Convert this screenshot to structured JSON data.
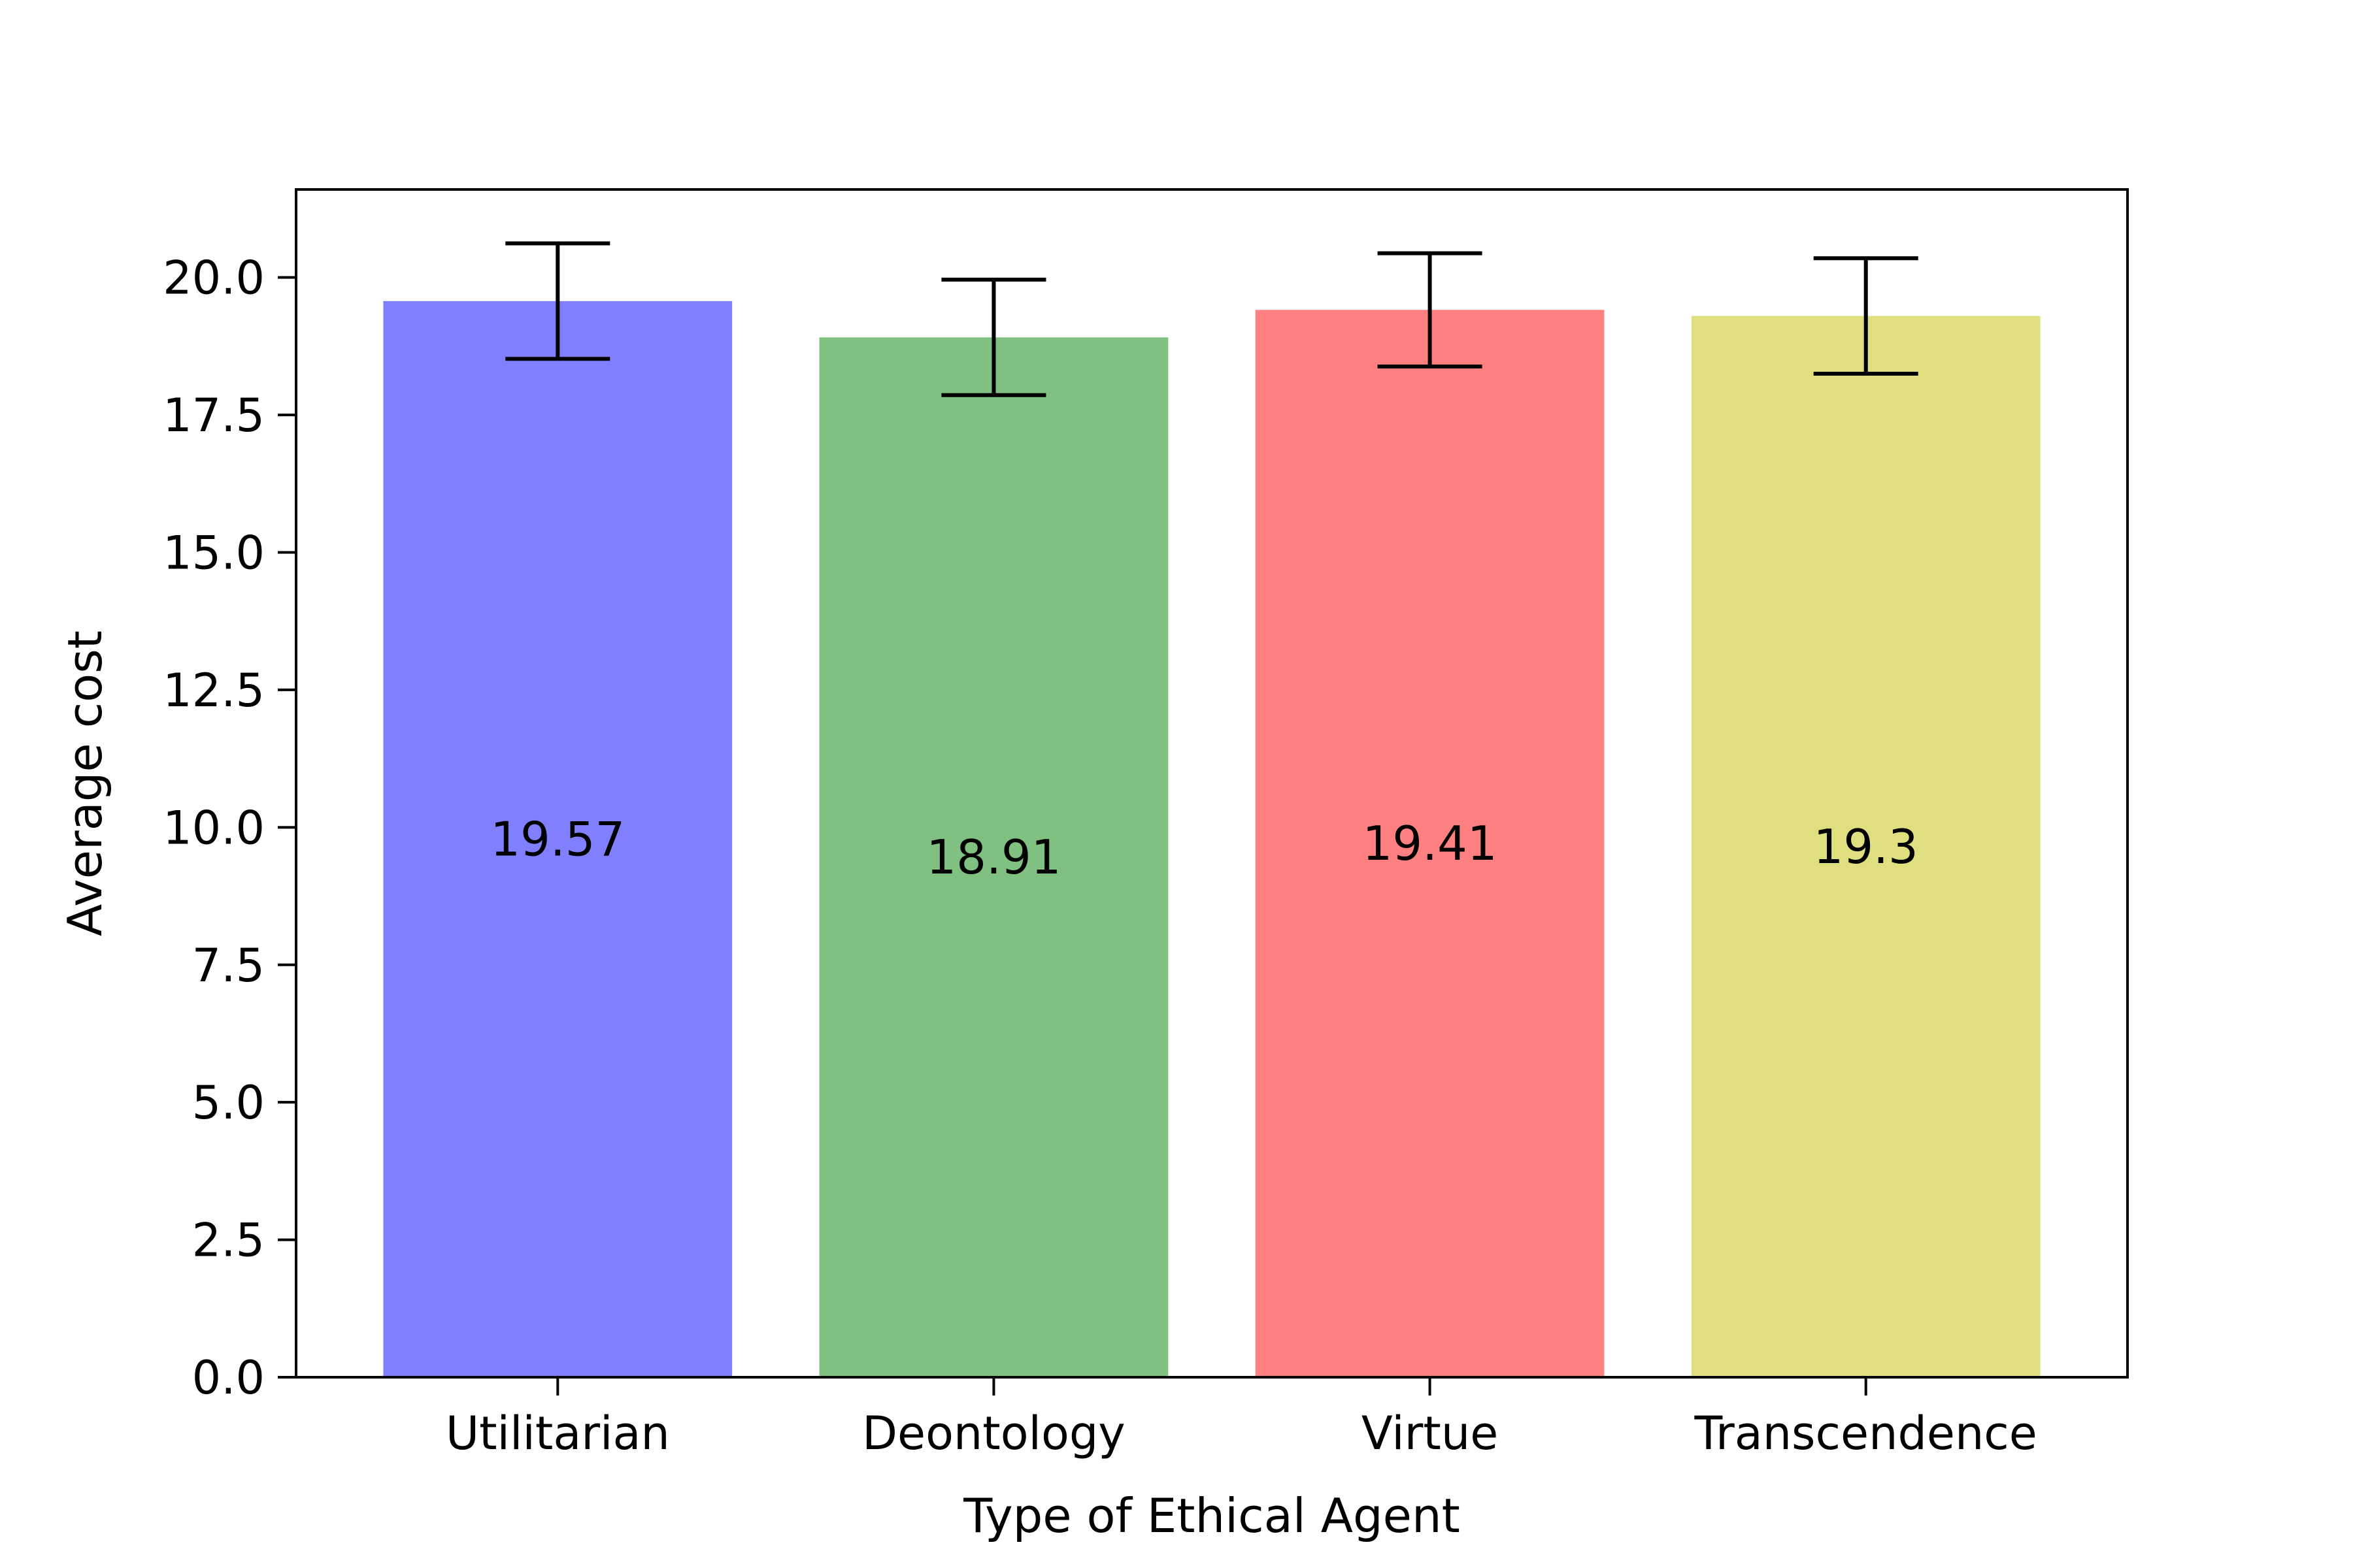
{
  "chart_data": {
    "type": "bar",
    "title": "",
    "xlabel": "Type of Ethical Agent",
    "ylabel": "Average cost",
    "categories": [
      "Utilitarian",
      "Deontology",
      "Virtue",
      "Transcendence"
    ],
    "values": [
      19.57,
      18.91,
      19.41,
      19.3
    ],
    "value_labels": [
      "19.57",
      "18.91",
      "19.41",
      "19.3"
    ],
    "error": [
      1.05,
      1.05,
      1.03,
      1.05
    ],
    "colors": [
      "#8080ff",
      "#80c080",
      "#ff8080",
      "#dfdf80"
    ],
    "ylim": [
      0,
      21.6
    ],
    "yticks": [
      0,
      2.5,
      5,
      7.5,
      10,
      12.5,
      15,
      17.5,
      20
    ],
    "ytick_labels": [
      "0.0",
      "2.5",
      "5.0",
      "7.5",
      "10.0",
      "12.5",
      "15.0",
      "17.5",
      "20.0"
    ],
    "grid": false,
    "legend": "none"
  }
}
